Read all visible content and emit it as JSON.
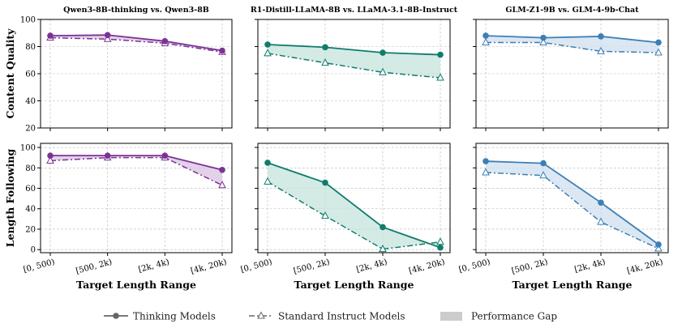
{
  "chart_data": {
    "type": "line",
    "categories": [
      "[0, 500)",
      "[500, 2k)",
      "[2k, 4k)",
      "[4k, 20k)"
    ],
    "xlabel": "Target Length Range",
    "rows": [
      {
        "ylabel": "Content Quality",
        "ylim": [
          20,
          100
        ],
        "yticks": [
          20,
          40,
          60,
          80,
          100
        ]
      },
      {
        "ylabel": "Length Following",
        "ylim": [
          -3,
          104
        ],
        "yticks": [
          0,
          20,
          40,
          60,
          80,
          100
        ]
      }
    ],
    "columns": [
      {
        "title": "Qwen3-8B-thinking vs. Qwen3-8B",
        "color": "#7b3294",
        "fill": "#d9c2e3"
      },
      {
        "title": "R1-Distill-LLaMA-8B vs. LLaMA-3.1-8B-Instruct",
        "color": "#0f7c6c",
        "fill": "#c6e3dc"
      },
      {
        "title": "GLM-Z1-9B vs. GLM-4-9b-Chat",
        "color": "#3d7fb5",
        "fill": "#cfdfee"
      }
    ],
    "panels": [
      {
        "row": 0,
        "col": 0,
        "series": [
          {
            "role": "thinking",
            "values": [
              88,
              88.5,
              84,
              77
            ]
          },
          {
            "role": "standard",
            "values": [
              86.5,
              85.5,
              82.5,
              76
            ]
          }
        ]
      },
      {
        "row": 0,
        "col": 1,
        "series": [
          {
            "role": "thinking",
            "values": [
              81.5,
              79.5,
              75.5,
              74
            ]
          },
          {
            "role": "standard",
            "values": [
              75,
              68,
              61,
              57
            ]
          }
        ]
      },
      {
        "row": 0,
        "col": 2,
        "series": [
          {
            "role": "thinking",
            "values": [
              88,
              86.5,
              87.5,
              83
            ]
          },
          {
            "role": "standard",
            "values": [
              83,
              83,
              76.5,
              75.5
            ]
          }
        ]
      },
      {
        "row": 1,
        "col": 0,
        "series": [
          {
            "role": "thinking",
            "values": [
              92,
              92,
              92,
              78
            ]
          },
          {
            "role": "standard",
            "values": [
              87,
              90,
              90,
              63
            ]
          }
        ]
      },
      {
        "row": 1,
        "col": 1,
        "series": [
          {
            "role": "thinking",
            "values": [
              85,
              65.5,
              22,
              2
            ]
          },
          {
            "role": "standard",
            "values": [
              66.5,
              33,
              0.5,
              7.5
            ]
          }
        ]
      },
      {
        "row": 1,
        "col": 2,
        "series": [
          {
            "role": "thinking",
            "values": [
              86.5,
              84.5,
              46,
              5
            ]
          },
          {
            "role": "standard",
            "values": [
              75.5,
              72.5,
              27,
              1
            ]
          }
        ]
      }
    ],
    "legend": {
      "position": "bottom-center",
      "items": [
        {
          "key": "thinking",
          "label": "Thinking Models",
          "color": "#666666"
        },
        {
          "key": "standard",
          "label": "Standard Instruct Models",
          "color": "#666666"
        },
        {
          "key": "gap",
          "label": "Performance Gap",
          "color": "#cccccc"
        }
      ]
    },
    "grid": true
  }
}
